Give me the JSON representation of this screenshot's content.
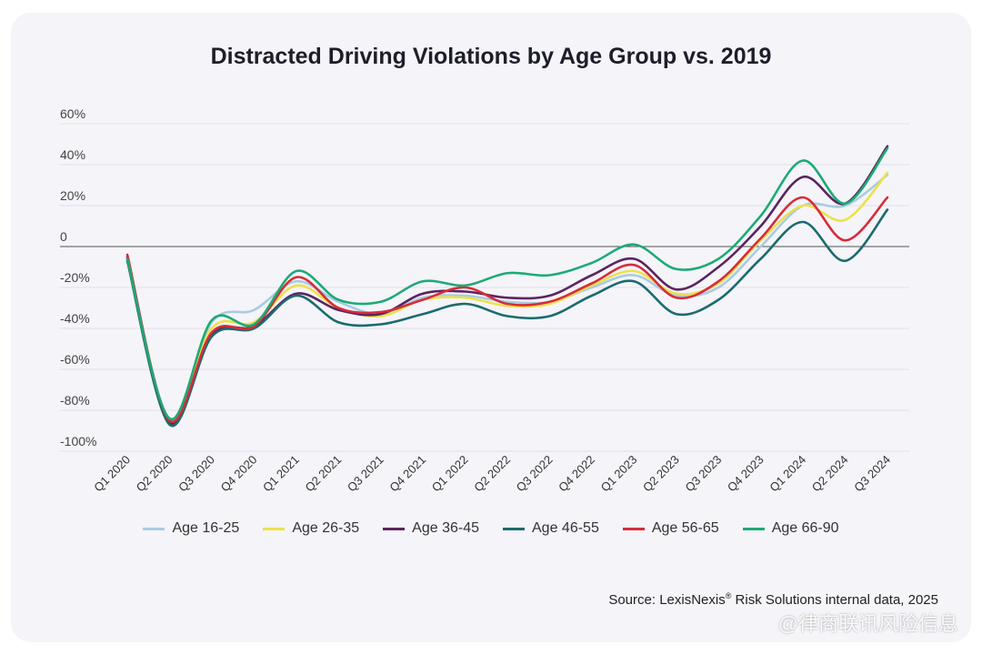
{
  "chart_data": {
    "type": "line",
    "title": "Distracted Driving Violations by Age Group vs. 2019",
    "xlabel": "",
    "ylabel": "",
    "ylim": [
      -100,
      60
    ],
    "yticks": [
      60,
      40,
      20,
      0,
      -20,
      -40,
      -60,
      -80,
      -100
    ],
    "ytick_labels": [
      "60%",
      "40%",
      "20%",
      "0",
      "-20%",
      "-40%",
      "-60%",
      "-80%",
      "-100%"
    ],
    "categories": [
      "Q1 2020",
      "Q2 2020",
      "Q3 2020",
      "Q4 2020",
      "Q1 2021",
      "Q2 2021",
      "Q3 2021",
      "Q4 2021",
      "Q1 2022",
      "Q2 2022",
      "Q3 2022",
      "Q4 2022",
      "Q1 2023",
      "Q2 2023",
      "Q3 2023",
      "Q4 2023",
      "Q1 2024",
      "Q2 2024",
      "Q3 2024"
    ],
    "grid": true,
    "legend_position": "bottom",
    "series": [
      {
        "name": "Age 16-25",
        "color": "#a9cbe3",
        "values": [
          -6,
          -85,
          -37,
          -31,
          -17,
          -27,
          -33,
          -25,
          -24,
          -27,
          -27,
          -20,
          -14,
          -24,
          -20,
          0,
          20,
          20,
          35
        ]
      },
      {
        "name": "Age 26-35",
        "color": "#ece14a",
        "values": [
          -6,
          -85,
          -40,
          -37,
          -19,
          -30,
          -34,
          -26,
          -25,
          -29,
          -28,
          -19,
          -12,
          -23,
          -18,
          3,
          20,
          13,
          36
        ]
      },
      {
        "name": "Age 36-45",
        "color": "#5b2460",
        "values": [
          -5,
          -86,
          -43,
          -39,
          -23,
          -31,
          -33,
          -23,
          -22,
          -25,
          -24,
          -14,
          -6,
          -21,
          -10,
          10,
          34,
          21,
          49
        ]
      },
      {
        "name": "Age 46-55",
        "color": "#1b6b6d",
        "values": [
          -7,
          -87,
          -44,
          -40,
          -24,
          -37,
          -38,
          -33,
          -28,
          -34,
          -34,
          -24,
          -17,
          -33,
          -26,
          -6,
          12,
          -7,
          18
        ]
      },
      {
        "name": "Age 56-65",
        "color": "#d72c3a",
        "values": [
          -4,
          -85,
          -42,
          -39,
          -15,
          -30,
          -32,
          -26,
          -20,
          -28,
          -27,
          -18,
          -9,
          -25,
          -17,
          4,
          24,
          3,
          24
        ]
      },
      {
        "name": "Age 66-90",
        "color": "#1eaa74",
        "values": [
          -6,
          -84,
          -36,
          -38,
          -12,
          -26,
          -27,
          -17,
          -19,
          -13,
          -14,
          -8,
          1,
          -11,
          -6,
          15,
          42,
          21,
          48
        ]
      }
    ]
  },
  "source": {
    "prefix": "Source: LexisNexis",
    "reg": "®",
    "suffix": " Risk Solutions internal data, 2025"
  },
  "watermark": "@律商联讯风险信息"
}
